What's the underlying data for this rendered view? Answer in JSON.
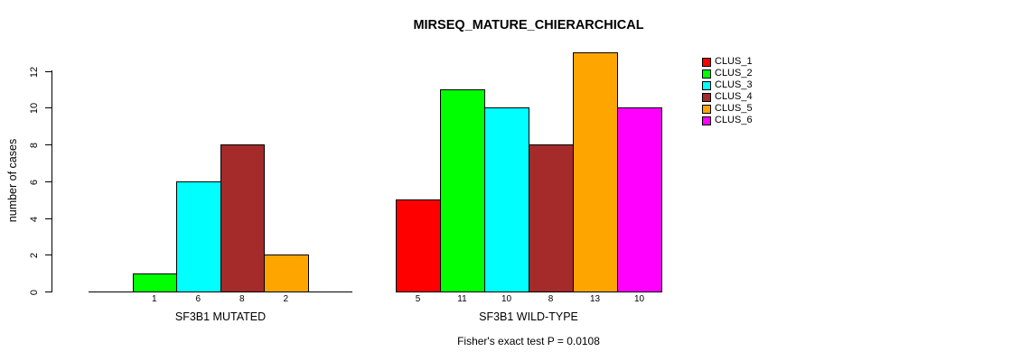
{
  "chart_data": {
    "type": "bar",
    "title": "MIRSEQ_MATURE_CHIERARCHICAL",
    "ylabel": "number of cases",
    "ylim": [
      0,
      13
    ],
    "yticks": [
      0,
      2,
      4,
      6,
      8,
      10,
      12
    ],
    "grid": false,
    "legend_position": "right-outside",
    "categories": [
      "CLUS_1",
      "CLUS_2",
      "CLUS_3",
      "CLUS_4",
      "CLUS_5",
      "CLUS_6"
    ],
    "cluster_colors": [
      "#FF0000",
      "#00FF00",
      "#00FFFF",
      "#A52A2A",
      "#FFA500",
      "#FF00FF"
    ],
    "groups": [
      {
        "label": "SF3B1 MUTATED",
        "values": [
          null,
          1,
          6,
          8,
          2,
          null
        ],
        "axis_line": true
      },
      {
        "label": "SF3B1 WILD-TYPE",
        "values": [
          5,
          11,
          10,
          8,
          13,
          10
        ],
        "axis_line": false
      }
    ],
    "footnote": "Fisher's exact test P = 0.0108"
  },
  "legend": {
    "entries": [
      {
        "label": "CLUS_1",
        "color": "#FF0000"
      },
      {
        "label": "CLUS_2",
        "color": "#00FF00"
      },
      {
        "label": "CLUS_3",
        "color": "#00FFFF"
      },
      {
        "label": "CLUS_4",
        "color": "#A52A2A"
      },
      {
        "label": "CLUS_5",
        "color": "#FFA500"
      },
      {
        "label": "CLUS_6",
        "color": "#FF00FF"
      }
    ]
  }
}
